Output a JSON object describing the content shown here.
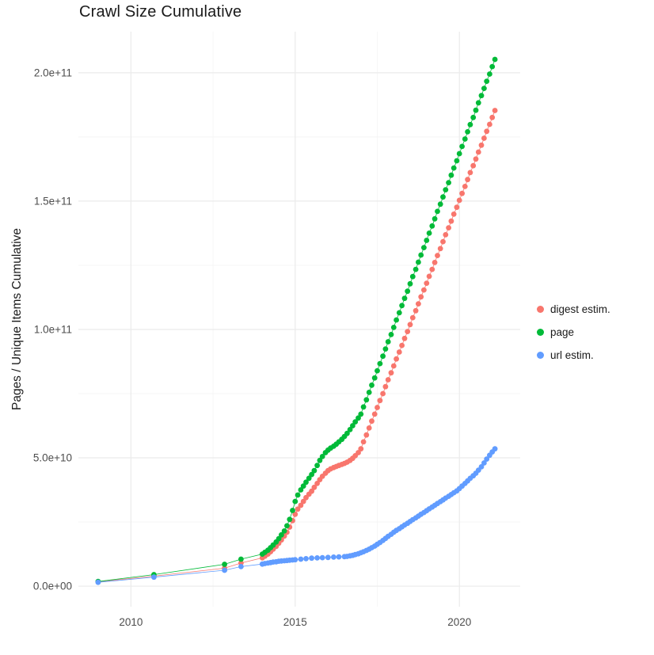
{
  "chart_data": {
    "type": "scatter",
    "title": "Crawl Size Cumulative",
    "xlabel": "",
    "ylabel": "Pages / Unique Items Cumulative",
    "legend_position": "right",
    "grid": true,
    "x_range": [
      2008.4,
      2021.85
    ],
    "y_range_e9": [
      -8,
      216
    ],
    "x_ticks": [
      2010,
      2015,
      2020
    ],
    "x_minor_ticks": [
      2012.5,
      2017.5
    ],
    "y_ticks": [
      {
        "value_e9": 0,
        "label": "0.0e+00"
      },
      {
        "value_e9": 50,
        "label": "5.0e+10"
      },
      {
        "value_e9": 100,
        "label": "1.0e+11"
      },
      {
        "value_e9": 150,
        "label": "1.5e+11"
      },
      {
        "value_e9": 200,
        "label": "2.0e+11"
      }
    ],
    "y_minor_ticks_e9": [
      25,
      75,
      125,
      175
    ],
    "values_unit": "points are [year, value in 1e9 pages/items]",
    "series": [
      {
        "name": "digest estim.",
        "color": "#F8766D",
        "points": [
          [
            2009.0,
            1.7
          ],
          [
            2010.7,
            3.9
          ],
          [
            2012.85,
            7.0
          ],
          [
            2013.35,
            9.0
          ],
          [
            2014.0,
            11.0
          ],
          [
            2014.08,
            11.7
          ],
          [
            2014.17,
            12.5
          ],
          [
            2014.25,
            13.4
          ],
          [
            2014.33,
            14.4
          ],
          [
            2014.42,
            15.5
          ],
          [
            2014.5,
            16.7
          ],
          [
            2014.58,
            18.0
          ],
          [
            2014.67,
            19.5
          ],
          [
            2014.75,
            21.0
          ],
          [
            2014.83,
            23.0
          ],
          [
            2014.92,
            25.5
          ],
          [
            2015.0,
            28.0
          ],
          [
            2015.08,
            30.0
          ],
          [
            2015.17,
            31.5
          ],
          [
            2015.25,
            33.0
          ],
          [
            2015.33,
            34.5
          ],
          [
            2015.42,
            35.8
          ],
          [
            2015.5,
            37.0
          ],
          [
            2015.58,
            38.5
          ],
          [
            2015.67,
            40.0
          ],
          [
            2015.75,
            41.5
          ],
          [
            2015.83,
            42.8
          ],
          [
            2015.92,
            44.0
          ],
          [
            2016.0,
            45.0
          ],
          [
            2016.08,
            45.7
          ],
          [
            2016.17,
            46.2
          ],
          [
            2016.25,
            46.6
          ],
          [
            2016.33,
            47.0
          ],
          [
            2016.42,
            47.4
          ],
          [
            2016.5,
            47.8
          ],
          [
            2016.58,
            48.3
          ],
          [
            2016.67,
            49.0
          ],
          [
            2016.75,
            49.8
          ],
          [
            2016.83,
            50.8
          ],
          [
            2016.92,
            52.0
          ],
          [
            2017.0,
            53.5
          ],
          [
            2017.08,
            56.2
          ],
          [
            2017.17,
            58.9
          ],
          [
            2017.25,
            61.6
          ],
          [
            2017.33,
            64.3
          ],
          [
            2017.42,
            67.0
          ],
          [
            2017.5,
            69.6
          ],
          [
            2017.58,
            72.3
          ],
          [
            2017.67,
            75.0
          ],
          [
            2017.75,
            77.7
          ],
          [
            2017.83,
            80.4
          ],
          [
            2017.92,
            83.1
          ],
          [
            2018.0,
            85.8
          ],
          [
            2018.08,
            88.5
          ],
          [
            2018.17,
            91.2
          ],
          [
            2018.25,
            93.8
          ],
          [
            2018.33,
            96.5
          ],
          [
            2018.42,
            99.2
          ],
          [
            2018.5,
            101.9
          ],
          [
            2018.58,
            104.6
          ],
          [
            2018.67,
            107.3
          ],
          [
            2018.75,
            110.0
          ],
          [
            2018.83,
            112.7
          ],
          [
            2018.92,
            115.4
          ],
          [
            2019.0,
            118.0
          ],
          [
            2019.08,
            120.7
          ],
          [
            2019.17,
            123.4
          ],
          [
            2019.25,
            126.1
          ],
          [
            2019.33,
            128.8
          ],
          [
            2019.42,
            131.5
          ],
          [
            2019.5,
            134.2
          ],
          [
            2019.58,
            136.9
          ],
          [
            2019.67,
            139.6
          ],
          [
            2019.75,
            142.2
          ],
          [
            2019.83,
            144.9
          ],
          [
            2019.92,
            147.6
          ],
          [
            2020.0,
            150.3
          ],
          [
            2020.08,
            153.0
          ],
          [
            2020.17,
            155.7
          ],
          [
            2020.25,
            158.4
          ],
          [
            2020.33,
            161.1
          ],
          [
            2020.42,
            163.8
          ],
          [
            2020.5,
            166.4
          ],
          [
            2020.58,
            169.1
          ],
          [
            2020.67,
            171.8
          ],
          [
            2020.75,
            174.5
          ],
          [
            2020.83,
            177.2
          ],
          [
            2020.92,
            179.9
          ],
          [
            2021.0,
            182.6
          ],
          [
            2021.08,
            185.3
          ]
        ]
      },
      {
        "name": "page",
        "color": "#00BA38",
        "points": [
          [
            2009.0,
            1.8
          ],
          [
            2010.7,
            4.5
          ],
          [
            2012.85,
            8.5
          ],
          [
            2013.35,
            10.5
          ],
          [
            2014.0,
            12.5
          ],
          [
            2014.08,
            13.2
          ],
          [
            2014.17,
            14.0
          ],
          [
            2014.25,
            15.0
          ],
          [
            2014.33,
            16.0
          ],
          [
            2014.42,
            17.2
          ],
          [
            2014.5,
            18.5
          ],
          [
            2014.58,
            20.0
          ],
          [
            2014.67,
            21.5
          ],
          [
            2014.75,
            23.5
          ],
          [
            2014.83,
            26.0
          ],
          [
            2014.92,
            29.5
          ],
          [
            2015.0,
            33.0
          ],
          [
            2015.08,
            35.5
          ],
          [
            2015.17,
            37.5
          ],
          [
            2015.25,
            39.0
          ],
          [
            2015.33,
            40.5
          ],
          [
            2015.42,
            42.0
          ],
          [
            2015.5,
            43.5
          ],
          [
            2015.58,
            45.0
          ],
          [
            2015.67,
            47.0
          ],
          [
            2015.75,
            49.0
          ],
          [
            2015.83,
            50.5
          ],
          [
            2015.92,
            52.0
          ],
          [
            2016.0,
            53.0
          ],
          [
            2016.08,
            53.8
          ],
          [
            2016.17,
            54.5
          ],
          [
            2016.25,
            55.3
          ],
          [
            2016.33,
            56.2
          ],
          [
            2016.42,
            57.2
          ],
          [
            2016.5,
            58.3
          ],
          [
            2016.58,
            59.5
          ],
          [
            2016.67,
            61.0
          ],
          [
            2016.75,
            62.5
          ],
          [
            2016.83,
            64.0
          ],
          [
            2016.92,
            65.5
          ],
          [
            2017.0,
            67.0
          ],
          [
            2017.08,
            69.8
          ],
          [
            2017.17,
            72.6
          ],
          [
            2017.25,
            75.5
          ],
          [
            2017.33,
            78.3
          ],
          [
            2017.42,
            81.1
          ],
          [
            2017.5,
            83.9
          ],
          [
            2017.58,
            86.7
          ],
          [
            2017.67,
            89.6
          ],
          [
            2017.75,
            92.4
          ],
          [
            2017.83,
            95.2
          ],
          [
            2017.92,
            98.0
          ],
          [
            2018.0,
            100.8
          ],
          [
            2018.08,
            103.7
          ],
          [
            2018.17,
            106.5
          ],
          [
            2018.25,
            109.3
          ],
          [
            2018.33,
            112.1
          ],
          [
            2018.42,
            114.9
          ],
          [
            2018.5,
            117.8
          ],
          [
            2018.58,
            120.6
          ],
          [
            2018.67,
            123.4
          ],
          [
            2018.75,
            126.2
          ],
          [
            2018.83,
            129.0
          ],
          [
            2018.92,
            131.9
          ],
          [
            2019.0,
            134.7
          ],
          [
            2019.08,
            137.5
          ],
          [
            2019.17,
            140.3
          ],
          [
            2019.25,
            143.1
          ],
          [
            2019.33,
            146.0
          ],
          [
            2019.42,
            148.8
          ],
          [
            2019.5,
            151.6
          ],
          [
            2019.58,
            154.4
          ],
          [
            2019.67,
            157.2
          ],
          [
            2019.75,
            160.1
          ],
          [
            2019.83,
            162.9
          ],
          [
            2019.92,
            165.7
          ],
          [
            2020.0,
            168.5
          ],
          [
            2020.08,
            171.3
          ],
          [
            2020.17,
            174.2
          ],
          [
            2020.25,
            177.0
          ],
          [
            2020.33,
            179.8
          ],
          [
            2020.42,
            182.6
          ],
          [
            2020.5,
            185.4
          ],
          [
            2020.58,
            188.3
          ],
          [
            2020.67,
            191.1
          ],
          [
            2020.75,
            193.9
          ],
          [
            2020.83,
            196.7
          ],
          [
            2020.92,
            199.5
          ],
          [
            2021.0,
            202.4
          ],
          [
            2021.08,
            205.2
          ]
        ]
      },
      {
        "name": "url estim.",
        "color": "#619CFF",
        "points": [
          [
            2009.0,
            1.5
          ],
          [
            2010.7,
            3.5
          ],
          [
            2012.85,
            6.2
          ],
          [
            2013.35,
            7.6
          ],
          [
            2014.0,
            8.6
          ],
          [
            2014.08,
            8.8
          ],
          [
            2014.17,
            9.0
          ],
          [
            2014.25,
            9.2
          ],
          [
            2014.33,
            9.4
          ],
          [
            2014.42,
            9.5
          ],
          [
            2014.5,
            9.7
          ],
          [
            2014.58,
            9.8
          ],
          [
            2014.67,
            9.9
          ],
          [
            2014.75,
            10.0
          ],
          [
            2014.83,
            10.1
          ],
          [
            2014.92,
            10.2
          ],
          [
            2015.0,
            10.3
          ],
          [
            2015.17,
            10.5
          ],
          [
            2015.33,
            10.7
          ],
          [
            2015.5,
            10.9
          ],
          [
            2015.67,
            11.0
          ],
          [
            2015.83,
            11.1
          ],
          [
            2016.0,
            11.2
          ],
          [
            2016.17,
            11.3
          ],
          [
            2016.33,
            11.4
          ],
          [
            2016.5,
            11.5
          ],
          [
            2016.58,
            11.6
          ],
          [
            2016.67,
            11.8
          ],
          [
            2016.75,
            12.0
          ],
          [
            2016.83,
            12.3
          ],
          [
            2016.92,
            12.6
          ],
          [
            2017.0,
            13.0
          ],
          [
            2017.08,
            13.4
          ],
          [
            2017.17,
            13.9
          ],
          [
            2017.25,
            14.4
          ],
          [
            2017.33,
            15.0
          ],
          [
            2017.42,
            15.6
          ],
          [
            2017.5,
            16.3
          ],
          [
            2017.58,
            17.0
          ],
          [
            2017.67,
            17.8
          ],
          [
            2017.75,
            18.6
          ],
          [
            2017.83,
            19.4
          ],
          [
            2017.92,
            20.2
          ],
          [
            2018.0,
            21.0
          ],
          [
            2018.08,
            21.7
          ],
          [
            2018.17,
            22.4
          ],
          [
            2018.25,
            23.1
          ],
          [
            2018.33,
            23.8
          ],
          [
            2018.42,
            24.5
          ],
          [
            2018.5,
            25.2
          ],
          [
            2018.58,
            25.9
          ],
          [
            2018.67,
            26.6
          ],
          [
            2018.75,
            27.3
          ],
          [
            2018.83,
            28.0
          ],
          [
            2018.92,
            28.7
          ],
          [
            2019.0,
            29.4
          ],
          [
            2019.08,
            30.1
          ],
          [
            2019.17,
            30.8
          ],
          [
            2019.25,
            31.5
          ],
          [
            2019.33,
            32.2
          ],
          [
            2019.42,
            32.9
          ],
          [
            2019.5,
            33.6
          ],
          [
            2019.58,
            34.3
          ],
          [
            2019.67,
            35.0
          ],
          [
            2019.75,
            35.7
          ],
          [
            2019.83,
            36.4
          ],
          [
            2019.92,
            37.1
          ],
          [
            2020.0,
            38.0
          ],
          [
            2020.08,
            39.0
          ],
          [
            2020.17,
            40.0
          ],
          [
            2020.25,
            41.0
          ],
          [
            2020.33,
            42.0
          ],
          [
            2020.42,
            43.0
          ],
          [
            2020.5,
            44.0
          ],
          [
            2020.58,
            45.2
          ],
          [
            2020.67,
            46.5
          ],
          [
            2020.75,
            48.0
          ],
          [
            2020.83,
            49.5
          ],
          [
            2020.92,
            51.0
          ],
          [
            2021.0,
            52.3
          ],
          [
            2021.08,
            53.5
          ]
        ]
      }
    ]
  },
  "colors": {
    "background": "#FFFFFF",
    "grid_major": "#EBEBEB",
    "grid_minor": "#F5F5F5",
    "axis_text": "#4D4D4D",
    "title_text": "#1A1A1A"
  }
}
